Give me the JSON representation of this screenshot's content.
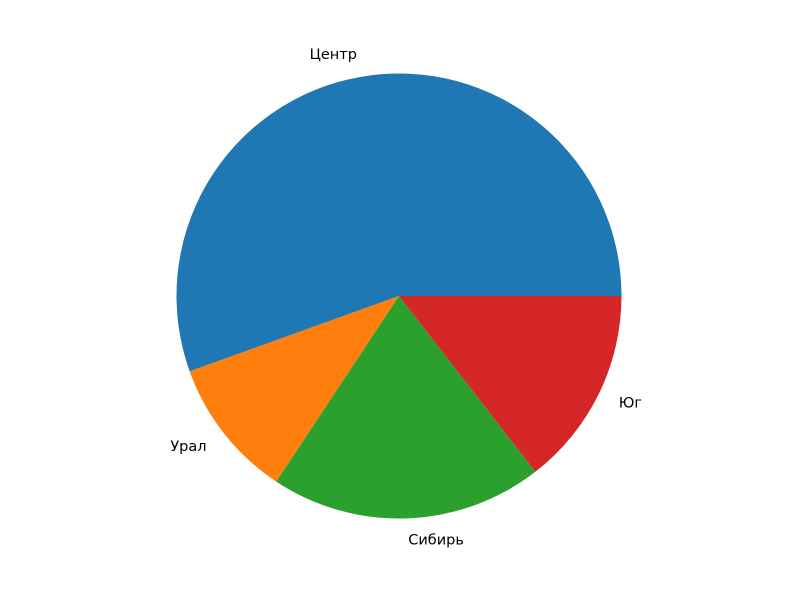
{
  "figure": {
    "background": "#ffffff"
  },
  "chart_data": {
    "type": "pie",
    "labels": [
      "Центр",
      "Урал",
      "Сибирь",
      "Юг"
    ],
    "values": [
      55.5,
      10.2,
      19.8,
      14.5
    ],
    "colors": [
      "#1f77b4",
      "#ff7f0e",
      "#2ca02c",
      "#d62728"
    ],
    "text_color": "#000000",
    "title": "",
    "legend": "none",
    "start_angle_deg": 0,
    "direction": "counterclockwise",
    "label_distance": 1.1
  }
}
